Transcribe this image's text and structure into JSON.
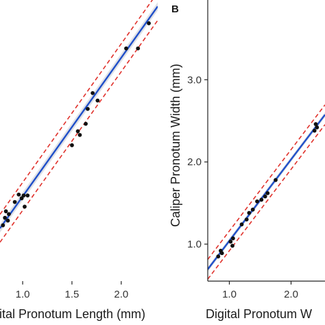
{
  "colors": {
    "fit_line": "#1f4fc9",
    "ci_band": "#c9cdd6",
    "prediction_bounds": "#e0312b",
    "points": "#111111",
    "axis": "#222222"
  },
  "chart_data": [
    {
      "panel": "",
      "type": "scatter",
      "xlabel": "Digital Pronotum Length (mm)",
      "ylabel": "",
      "xlim": [
        0.77,
        2.37
      ],
      "ylim": [
        0.6,
        3.62
      ],
      "x_ticks": [
        1.0,
        1.5,
        2.0
      ],
      "x_tick_labels": [
        "1.0",
        "1.5",
        "2.0"
      ],
      "y_ticks": [],
      "y_tick_labels": [],
      "grid": false,
      "fit": {
        "intercept": 0.02,
        "slope": 1.49
      },
      "bounds_offset": 0.15,
      "points": [
        {
          "x": 0.8,
          "y": 1.2
        },
        {
          "x": 0.82,
          "y": 1.28
        },
        {
          "x": 0.83,
          "y": 1.35
        },
        {
          "x": 0.85,
          "y": 1.25
        },
        {
          "x": 0.86,
          "y": 1.32
        },
        {
          "x": 0.92,
          "y": 1.45
        },
        {
          "x": 0.96,
          "y": 1.53
        },
        {
          "x": 0.99,
          "y": 1.49
        },
        {
          "x": 1.01,
          "y": 1.52
        },
        {
          "x": 1.02,
          "y": 1.4
        },
        {
          "x": 1.05,
          "y": 1.52
        },
        {
          "x": 1.5,
          "y": 2.06
        },
        {
          "x": 1.56,
          "y": 2.21
        },
        {
          "x": 1.58,
          "y": 2.17
        },
        {
          "x": 1.64,
          "y": 2.29
        },
        {
          "x": 1.66,
          "y": 2.45
        },
        {
          "x": 1.71,
          "y": 2.62
        },
        {
          "x": 1.76,
          "y": 2.54
        },
        {
          "x": 2.05,
          "y": 3.1
        },
        {
          "x": 2.17,
          "y": 3.1
        },
        {
          "x": 2.28,
          "y": 3.37
        }
      ]
    },
    {
      "panel": "B",
      "type": "scatter",
      "xlabel": "Digital Pronotum W",
      "ylabel": "Caliper Pronotum Width (mm)",
      "xlim": [
        0.65,
        2.55
      ],
      "ylim": [
        0.55,
        3.97
      ],
      "x_ticks": [
        1.0,
        2.0
      ],
      "x_tick_labels": [
        "1.0",
        "2.0"
      ],
      "y_ticks": [
        1.0,
        2.0,
        3.0
      ],
      "y_tick_labels": [
        "1.0",
        "2.0",
        "3.0"
      ],
      "grid": false,
      "fit": {
        "intercept": 0.05,
        "slope": 0.99
      },
      "bounds_offset": 0.12,
      "points": [
        {
          "x": 0.82,
          "y": 0.85
        },
        {
          "x": 0.86,
          "y": 0.92
        },
        {
          "x": 0.88,
          "y": 0.89
        },
        {
          "x": 1.02,
          "y": 1.03
        },
        {
          "x": 1.05,
          "y": 0.98
        },
        {
          "x": 1.06,
          "y": 1.07
        },
        {
          "x": 1.2,
          "y": 1.24
        },
        {
          "x": 1.28,
          "y": 1.3
        },
        {
          "x": 1.32,
          "y": 1.38
        },
        {
          "x": 1.38,
          "y": 1.42
        },
        {
          "x": 1.45,
          "y": 1.52
        },
        {
          "x": 1.52,
          "y": 1.54
        },
        {
          "x": 1.58,
          "y": 1.58
        },
        {
          "x": 1.62,
          "y": 1.62
        },
        {
          "x": 1.75,
          "y": 1.78
        },
        {
          "x": 2.38,
          "y": 2.38
        },
        {
          "x": 2.4,
          "y": 2.46
        },
        {
          "x": 2.42,
          "y": 2.42
        }
      ]
    }
  ]
}
